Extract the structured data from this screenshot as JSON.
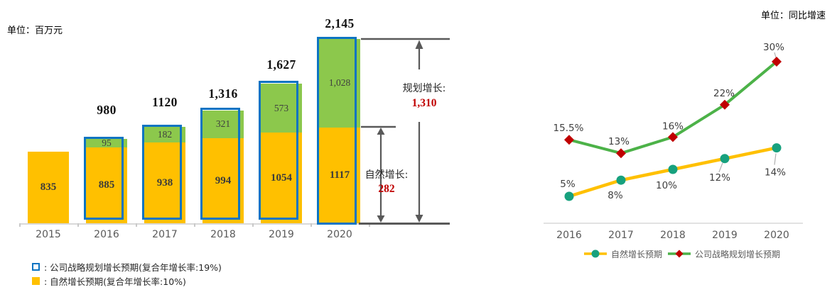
{
  "page": {
    "background": "#ffffff"
  },
  "chart_data": [
    {
      "type": "bar",
      "subtype": "stacked",
      "unit": "单位：百万元",
      "categories": [
        "2015",
        "2016",
        "2017",
        "2018",
        "2019",
        "2020"
      ],
      "series": [
        {
          "name": "自然增长预期",
          "color": "#FFC000",
          "values": [
            835,
            885,
            938,
            994,
            1054,
            1117
          ],
          "value_labels": [
            "835",
            "885",
            "938",
            "994",
            "1054",
            "1117"
          ]
        },
        {
          "name": "公司战略规划增长预期",
          "color": "#8CC84C",
          "outline_color": "#0C74C2",
          "values": [
            0,
            95,
            182,
            321,
            573,
            1028
          ],
          "value_labels": [
            "",
            "95",
            "182",
            "321",
            "573",
            "1,028"
          ]
        }
      ],
      "total_labels": [
        "",
        "980",
        "1120",
        "1,316",
        "1,627",
        "2,145"
      ],
      "ylim": [
        0,
        2145
      ],
      "grid": false,
      "annotations": {
        "planned_label": "规划增长:",
        "planned_value": "1,310",
        "natural_label": "自然增长:",
        "natural_value": "282",
        "value_color": "#C00000",
        "arrow_color": "#595959"
      },
      "legend": {
        "position": "bottom-left",
        "items": [
          {
            "swatch": "blue-outline-square",
            "label": ": 公司战略规划增长预期(复合年增长率:19%)"
          },
          {
            "swatch": "yellow-square",
            "label": ": 自然增长预期(复合年增长率:10%)"
          }
        ]
      }
    },
    {
      "type": "line",
      "unit": "单位：同比增速",
      "x": [
        "2016",
        "2017",
        "2018",
        "2019",
        "2020"
      ],
      "series": [
        {
          "name": "自然增长预期",
          "line_color": "#FFC000",
          "marker": "circle",
          "marker_color": "#17A17E",
          "values": [
            5,
            8,
            10,
            12,
            14
          ],
          "point_labels": [
            "5%",
            "8%",
            "10%",
            "12%",
            "14%"
          ]
        },
        {
          "name": "公司战略规划增长预期",
          "line_color": "#4CB248",
          "marker": "diamond",
          "marker_color": "#C00000",
          "values": [
            15.5,
            13,
            16,
            22,
            30
          ],
          "point_labels": [
            "15.5%",
            "13%",
            "16%",
            "22%",
            "30%"
          ]
        }
      ],
      "ylim": [
        0,
        34
      ],
      "grid": false,
      "legend": {
        "position": "bottom-center"
      }
    }
  ]
}
